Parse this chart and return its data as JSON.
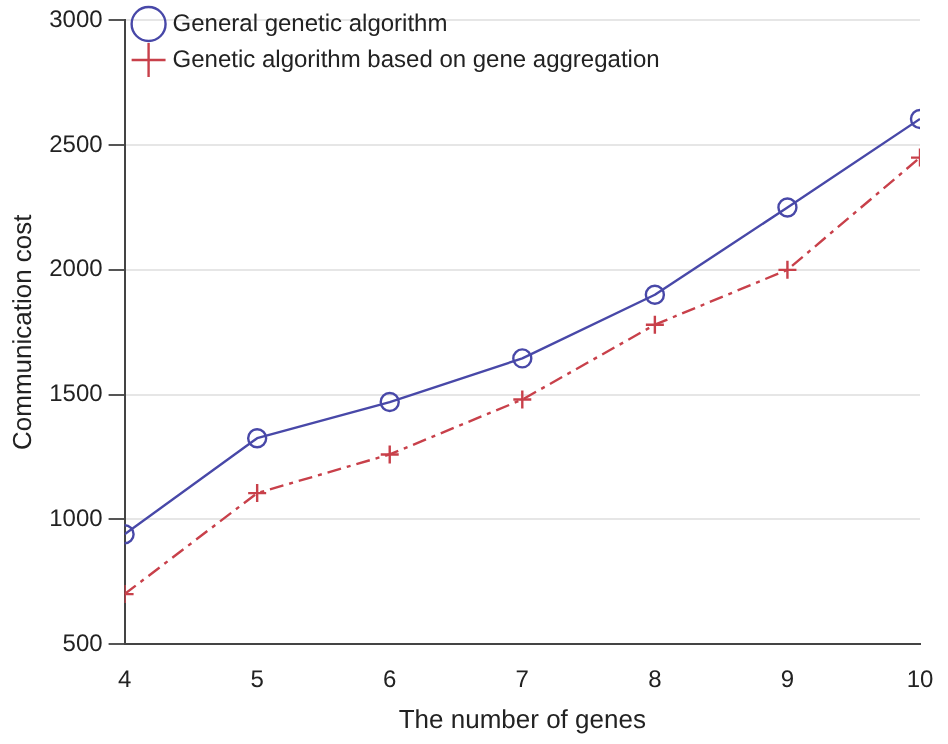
{
  "chart_data": {
    "type": "line",
    "xlabel": "The number of genes",
    "ylabel": "Communication cost",
    "x": [
      4,
      5,
      6,
      7,
      8,
      9,
      10
    ],
    "xlim": [
      4,
      10
    ],
    "xticks": [
      4,
      5,
      6,
      7,
      8,
      9,
      10
    ],
    "ylim": [
      500,
      3000
    ],
    "yticks": [
      500,
      1000,
      1500,
      2000,
      2500,
      3000
    ],
    "grid": "y",
    "legend": "top left",
    "series": [
      {
        "name": "General genetic algorithm",
        "color": "#4848a8",
        "values": [
          940,
          1325,
          1470,
          1645,
          1900,
          2250,
          2605
        ],
        "marker": "circle",
        "line_style": "solid"
      },
      {
        "name": "Genetic algorithm based on gene aggregation",
        "color": "#c8404a",
        "values": [
          700,
          1105,
          1260,
          1480,
          1780,
          2000,
          2450
        ],
        "marker": "cross",
        "line_style": "dashed"
      }
    ]
  }
}
